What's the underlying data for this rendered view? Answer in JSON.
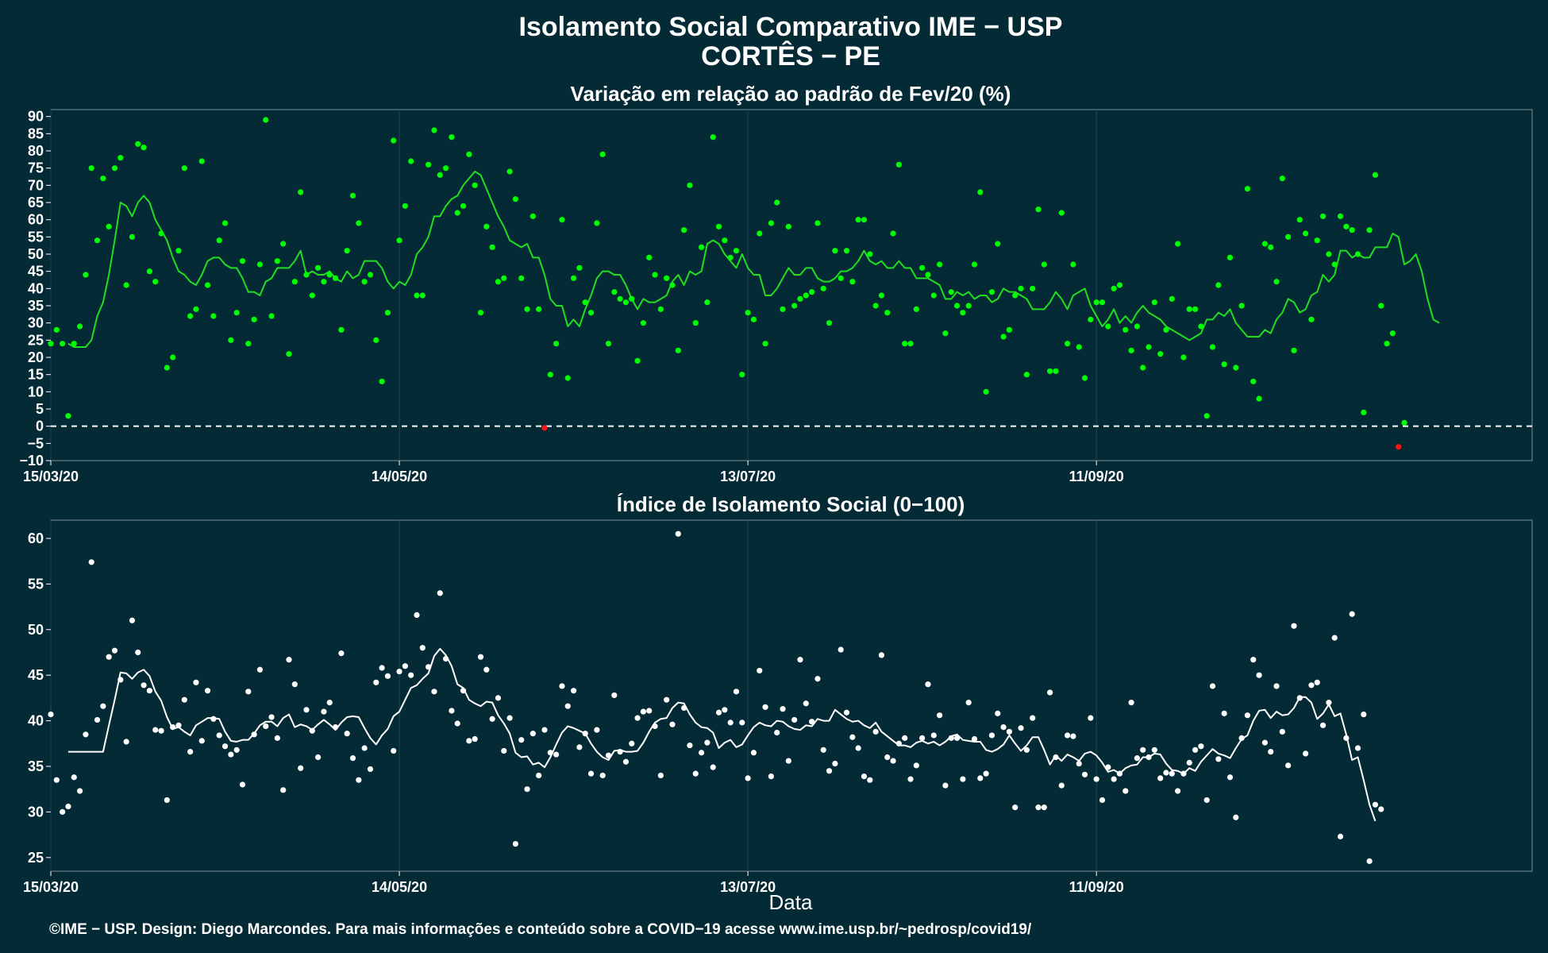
{
  "title_line1": "Isolamento Social Comparativo IME − USP",
  "title_line2": "CORTÊS − PE",
  "footer": "©IME − USP. Design: Diego Marcondes. Para mais informações e conteúdo sobre a COVID−19 acesse www.ime.usp.br/~pedrosp/covid19/",
  "colors": {
    "background": "#042a36",
    "top_points": "#00ff00",
    "top_line": "#22dd22",
    "negative_points": "#ff1111",
    "bottom_points": "#ffffff",
    "zero_line": "#ffffff"
  },
  "chart_data": [
    {
      "type": "scatter",
      "title": "Variação em relação ao padrão de Fev/20 (%)",
      "xlabel": "",
      "ylabel": "",
      "x_start": "2020-03-15",
      "x_tick_labels": [
        "15/03/20",
        "14/05/20",
        "13/07/20",
        "11/09/20"
      ],
      "x_tick_dates": [
        "2020-03-15",
        "2020-05-14",
        "2020-07-13",
        "2020-09-11"
      ],
      "x_range_dates": [
        "2020-03-15",
        "2020-11-25"
      ],
      "ylim": [
        -10,
        92
      ],
      "y_ticks": [
        -10,
        -5,
        0,
        5,
        10,
        15,
        20,
        25,
        30,
        35,
        40,
        45,
        50,
        55,
        60,
        65,
        70,
        75,
        80,
        85,
        90
      ],
      "grid": true,
      "reference_line": 0,
      "series": [
        {
          "values": [
            24,
            28,
            24,
            3,
            24,
            29,
            44,
            75,
            54,
            72,
            58,
            75,
            78,
            41,
            55,
            82,
            81,
            45,
            42,
            56,
            17,
            20,
            51,
            75,
            32,
            34,
            77,
            41,
            32,
            54,
            59,
            25,
            33,
            48,
            24,
            31,
            47,
            89,
            32,
            48,
            53,
            21,
            42,
            68,
            44,
            38,
            46,
            42,
            44,
            43,
            28,
            51,
            67,
            59,
            42,
            44,
            25,
            13,
            33,
            83,
            54,
            64,
            77,
            38,
            38,
            76,
            86,
            73,
            75,
            84,
            62,
            64,
            79,
            70,
            33,
            58,
            52,
            42,
            43,
            74,
            66,
            43,
            34,
            61,
            34,
            -0.5,
            15,
            24,
            60,
            14,
            43,
            46,
            36,
            33,
            59,
            79,
            24,
            39,
            37,
            36,
            37,
            19,
            30,
            49,
            44,
            34,
            43,
            41,
            22,
            57,
            70,
            30,
            52,
            36,
            84,
            58,
            54,
            49,
            51,
            15,
            33,
            31,
            56,
            24,
            59,
            65,
            34,
            58,
            35,
            37,
            38,
            39,
            59,
            40,
            30,
            51,
            43,
            51,
            42,
            60,
            60,
            50,
            35,
            38,
            33,
            56,
            76,
            24,
            24,
            34,
            46,
            44,
            38,
            47,
            27,
            39,
            35,
            33,
            35,
            47,
            68,
            10,
            39,
            53,
            26,
            28,
            38,
            40,
            15,
            40,
            63,
            47,
            16,
            16,
            62,
            24,
            47,
            23,
            14,
            31,
            36,
            36,
            29,
            40,
            41,
            28,
            22,
            29,
            17,
            23,
            36,
            21,
            28,
            37,
            53,
            20,
            34,
            34,
            29,
            3,
            23,
            41,
            18,
            49,
            17,
            35,
            69,
            13,
            8,
            53,
            52,
            42,
            72,
            55,
            22,
            60,
            56,
            31,
            54,
            61,
            50,
            47,
            61,
            58,
            57,
            50,
            4,
            57,
            73,
            35,
            24,
            27,
            -6,
            1
          ]
        },
        {
          "name": "",
          "values": [
            24,
            23,
            23,
            23,
            25,
            32,
            36,
            44,
            54,
            65,
            64,
            61,
            65,
            67,
            65,
            60,
            57,
            54,
            49,
            45,
            44,
            42,
            41,
            44,
            48,
            49,
            49,
            47,
            46,
            46,
            43,
            39,
            39,
            38,
            42,
            43,
            46,
            46,
            46,
            48,
            51,
            44,
            45,
            44,
            44,
            45,
            43,
            42,
            45,
            43,
            44,
            48,
            48,
            48,
            46,
            42,
            40,
            42,
            41,
            44,
            50,
            52,
            55,
            61,
            61,
            64,
            66,
            67,
            70,
            72,
            74,
            73,
            69,
            65,
            61,
            58,
            54,
            53,
            52,
            53,
            49,
            49,
            44,
            37,
            35,
            35,
            29,
            31,
            29,
            34,
            38,
            43,
            45,
            45,
            44,
            44,
            41,
            37,
            34,
            37,
            36,
            36,
            37,
            38,
            42,
            44,
            41,
            45,
            44,
            45,
            53,
            54,
            53,
            50,
            48,
            46,
            50,
            46,
            44,
            44,
            38,
            38,
            40,
            43,
            46,
            44,
            44,
            46,
            46,
            43,
            42,
            42,
            43,
            45,
            45,
            46,
            48,
            51,
            48,
            47,
            48,
            46,
            46,
            48,
            46,
            46,
            43,
            43,
            43,
            42,
            41,
            37,
            37,
            39,
            38,
            39,
            37,
            38,
            38,
            36,
            37,
            40,
            39,
            39,
            38,
            37,
            34,
            34,
            34,
            36,
            39,
            37,
            34,
            38,
            39,
            40,
            35,
            32,
            29,
            31,
            34,
            30,
            32,
            30,
            33,
            35,
            33,
            32,
            31,
            29,
            28,
            27,
            26,
            25,
            26,
            27,
            31,
            31,
            33,
            32,
            34,
            30,
            28,
            26,
            26,
            26,
            28,
            27,
            31,
            33,
            37,
            36,
            33,
            34,
            38,
            39,
            44,
            42,
            44,
            51,
            51,
            49,
            50,
            49,
            49,
            52,
            52,
            52,
            56,
            55,
            47,
            48,
            50,
            45,
            37,
            31,
            30
          ]
        }
      ]
    },
    {
      "type": "scatter",
      "title": "Índice de Isolamento Social (0−100)",
      "xlabel": "Data",
      "ylabel": "",
      "x_start": "2020-03-15",
      "x_tick_labels": [
        "15/03/20",
        "14/05/20",
        "13/07/20",
        "11/09/20"
      ],
      "x_tick_dates": [
        "2020-03-15",
        "2020-05-14",
        "2020-07-13",
        "2020-09-11"
      ],
      "x_range_dates": [
        "2020-03-15",
        "2020-11-25"
      ],
      "ylim": [
        23.5,
        62
      ],
      "y_ticks": [
        25,
        30,
        35,
        40,
        45,
        50,
        55,
        60
      ],
      "grid": true,
      "series": [
        {
          "values": [
            40.7,
            33.5,
            30,
            30.6,
            33.8,
            32.3,
            38.5,
            57.4,
            40.1,
            41.6,
            47,
            47.7,
            44.5,
            37.7,
            51,
            47.5,
            43.9,
            43.3,
            39,
            38.9,
            31.3,
            39.3,
            39.5,
            42.3,
            36.6,
            44.2,
            37.8,
            43.3,
            40.2,
            38.4,
            37.2,
            36.3,
            36.8,
            33,
            43.2,
            38.5,
            45.6,
            39.4,
            40.4,
            38.1,
            32.4,
            46.7,
            44,
            34.8,
            41.2,
            38.9,
            36,
            41,
            42,
            39.3,
            47.4,
            38.6,
            35.9,
            33.5,
            37,
            34.7,
            44.2,
            45.8,
            44.9,
            36.7,
            45.4,
            46,
            45,
            51.6,
            48,
            45.9,
            43.2,
            54,
            46.8,
            41.1,
            39.7,
            43.3,
            37.8,
            38,
            47,
            45.6,
            40.2,
            42.5,
            36.7,
            40.3,
            26.5,
            37.9,
            32.5,
            38.6,
            34,
            39,
            36.5,
            36.3,
            43.8,
            41.6,
            43.3,
            37.1,
            38.6,
            34.2,
            39,
            34,
            36.2,
            42.8,
            36.6,
            35.5,
            37.5,
            40.3,
            41,
            41.1,
            39.4,
            34,
            42.3,
            39.6,
            60.5,
            41.4,
            37.3,
            34.2,
            36.5,
            37.6,
            34.9,
            40.9,
            41.2,
            39.8,
            43.2,
            39.8,
            33.7,
            36.5,
            45.5,
            41.5,
            33.9,
            38.7,
            41.3,
            35.6,
            40.1,
            46.7,
            41.9,
            39.9,
            44.6,
            36.8,
            34.5,
            35.3,
            47.8,
            40.9,
            38.2,
            37,
            33.9,
            33.5,
            38.8,
            47.2,
            36,
            35.6,
            37.5,
            38.1,
            33.6,
            35.1,
            38.1,
            44,
            38.4,
            40.6,
            32.9,
            38.1,
            38.1,
            33.6,
            42,
            38,
            33.7,
            34.2,
            38.4,
            40.8,
            39.3,
            38.8,
            30.5,
            39.2,
            36.8,
            40.3,
            30.5,
            30.5,
            43.1,
            36,
            32.9,
            38.4,
            38.3,
            35.3,
            34.1,
            40.3,
            33.6,
            31.3,
            34.9,
            33.6,
            34.2,
            32.3,
            42,
            35.9,
            36.8,
            36,
            36.8,
            33.7,
            34.3,
            34.2,
            32.3,
            34.2,
            35.4,
            36.8,
            37.2,
            31.3,
            43.8,
            35.8,
            40.8,
            33.8,
            29.4,
            38.1,
            40.6,
            46.7,
            45,
            37.6,
            36.6,
            43.8,
            38.8,
            35.1,
            50.4,
            42.5,
            36.4,
            43.9,
            44.2,
            39.5,
            42,
            49.1,
            27.3,
            38.1,
            51.7,
            37,
            40.7,
            24.6,
            30.8,
            30.3
          ]
        },
        {
          "name": "",
          "values": [
            36.6,
            36.6,
            36.6,
            36.6,
            36.6,
            36.6,
            36.6,
            39.5,
            42.3,
            45.3,
            45.2,
            44.6,
            45.3,
            45.6,
            44.9,
            43.2,
            42.2,
            40.4,
            39.1,
            39.3,
            38.8,
            38.4,
            39.5,
            39.9,
            40.3,
            40.3,
            40.2,
            38.8,
            37.8,
            37.7,
            37.9,
            37.9,
            38.6,
            39.5,
            39.9,
            39.9,
            39.4,
            40.3,
            40.7,
            39.3,
            39.6,
            39.4,
            39.0,
            39.6,
            40.1,
            39.6,
            39.0,
            39.8,
            40.4,
            40.5,
            40.4,
            39.2,
            38.1,
            37.4,
            38.4,
            39.1,
            40.5,
            41.0,
            42.3,
            43.6,
            43.9,
            44.6,
            45.2,
            47.1,
            47.9,
            47.2,
            46.0,
            44.0,
            43.6,
            42.3,
            41.9,
            41.6,
            42.1,
            42.0,
            40.6,
            39.7,
            38.6,
            36.5,
            36.0,
            36.1,
            35.2,
            35.4,
            34.9,
            36.0,
            37.4,
            38.7,
            39.4,
            39.2,
            38.9,
            38.6,
            37.5,
            36.6,
            36.0,
            35.7,
            36.7,
            36.8,
            36.6,
            36.6,
            36.7,
            37.6,
            38.8,
            39.8,
            40.2,
            40.3,
            41.4,
            42.0,
            41.9,
            40.7,
            39.8,
            39.3,
            39.2,
            38.7,
            37.0,
            37.6,
            37.9,
            37.1,
            37.4,
            38.4,
            39.3,
            39.8,
            39.5,
            39.4,
            40.0,
            39.9,
            39.4,
            39.1,
            39.0,
            39.5,
            39.4,
            40.2,
            40.0,
            40.0,
            41.2,
            40.7,
            40.2,
            39.9,
            40.0,
            39.5,
            39.2,
            39.8,
            38.8,
            38.3,
            37.8,
            37.3,
            37.3,
            37.1,
            37.6,
            37.8,
            37.5,
            37.7,
            37.3,
            37.7,
            38.3,
            38.5,
            37.9,
            37.8,
            37.7,
            37.7,
            36.8,
            36.6,
            36.9,
            37.4,
            38.4,
            37.5,
            36.7,
            37.3,
            38.2,
            38.2,
            36.8,
            35.2,
            36.2,
            35.6,
            36.3,
            36.0,
            35.6,
            36.4,
            36.6,
            36.2,
            35.4,
            34.4,
            34.6,
            34.2,
            34.8,
            35.1,
            35.2,
            36.0,
            36.0,
            36.4,
            36.3,
            35.3,
            34.6,
            34.5,
            34.2,
            34.8,
            34.5,
            35.5,
            36.2,
            36.9,
            36.4,
            36.2,
            35.9,
            37.0,
            38.0,
            38.4,
            40.0,
            41.1,
            41.2,
            40.3,
            41.0,
            40.6,
            40.7,
            41.4,
            42.6,
            42.6,
            42.0,
            40.2,
            40.8,
            41.8,
            40.5,
            40.8,
            38.5,
            35.7,
            36.0,
            33.5,
            30.8,
            29.0
          ]
        }
      ]
    }
  ]
}
